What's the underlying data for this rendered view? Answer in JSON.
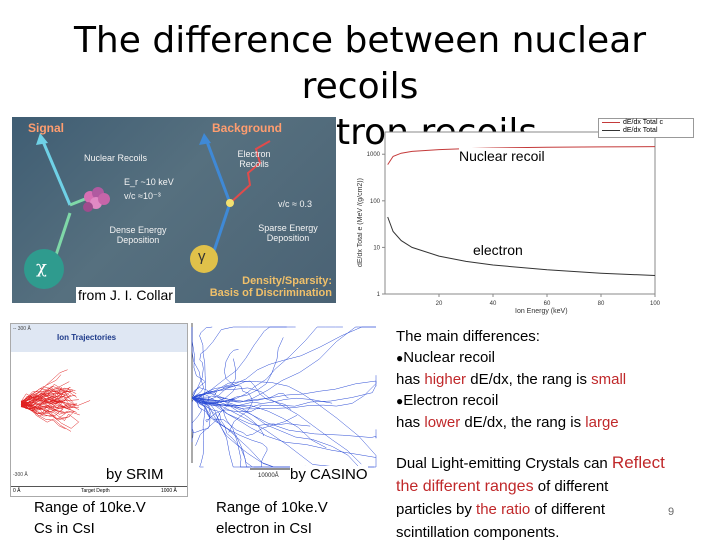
{
  "slide": {
    "title_line1": "The difference between nuclear recoils",
    "title_line2": "and electron recoils",
    "page_number": "9"
  },
  "signal_panel": {
    "signal": "Signal",
    "background": "Background",
    "nuclear_recoils": "Nuclear Recoils",
    "energy": "E_r ~10 keV",
    "velocity_nr": "v/c ≈10⁻³",
    "electron_recoils_line1": "Electron",
    "electron_recoils_line2": "Recoils",
    "velocity_er": "v/c ≈ 0.3",
    "dense_line1": "Dense Energy",
    "dense_line2": "Deposition",
    "sparse_line1": "Sparse Energy",
    "sparse_line2": "Deposition",
    "chi": "χ",
    "gamma": "γ",
    "basis_line1": "Density/Sparsity:",
    "basis_line2": "Basis of Discrimination",
    "credit": "from J. I. Collar"
  },
  "dedx_plot": {
    "legend": [
      "dE/dx Total c",
      "dE/dx Total"
    ],
    "ylabel": "dE/dx Total e (MeV /(g/cm2))",
    "xlabel": "Ion Energy (keV)",
    "nuclear_label": "Nuclear recoil",
    "electron_label": "electron"
  },
  "chart_data": {
    "type": "line",
    "xlabel": "Ion Energy (keV)",
    "ylabel": "dE/dx Total e (MeV /(g/cm2))",
    "xlim": [
      0,
      100
    ],
    "ylim": [
      1,
      3000
    ],
    "yscale": "log",
    "x_ticks": [
      "20",
      "40",
      "60",
      "80",
      "100"
    ],
    "y_ticks": [
      "1",
      "10",
      "100",
      "1000"
    ],
    "series": [
      {
        "name": "dE/dx Total c",
        "color": "#c43a3a",
        "x": [
          1,
          3,
          6,
          10,
          20,
          30,
          40,
          60,
          80,
          100
        ],
        "y": [
          600,
          900,
          1050,
          1150,
          1260,
          1320,
          1360,
          1410,
          1440,
          1460
        ]
      },
      {
        "name": "dE/dx Total",
        "color": "#333333",
        "x": [
          1,
          3,
          6,
          10,
          20,
          30,
          40,
          60,
          80,
          100
        ],
        "y": [
          45,
          22,
          14,
          10,
          6.5,
          5,
          4.2,
          3.3,
          2.8,
          2.5
        ]
      }
    ],
    "annotations": [
      "Nuclear recoil",
      "electron"
    ]
  },
  "srim": {
    "header": "Ion Trajectories",
    "scale_top": "-- 300 Å",
    "scale_bottom": "-300 Å",
    "axis_left": "0 Å",
    "axis_mid": "Target Depth",
    "axis_right": "1000 Å",
    "by": "by SRIM",
    "range_line1": "Range of 10ke.V",
    "range_line2": "Cs  in CsI"
  },
  "casino": {
    "scale": "10000Å",
    "by": "by CASINO",
    "range_line1": "Range of 10ke.V",
    "range_line2": "electron in CsI"
  },
  "differences": {
    "intro": "The main differences:",
    "bullet1": "Nuclear recoil",
    "nr_has": "has ",
    "nr_higher": "higher",
    "nr_mid": " dE/dx, the rang is ",
    "nr_small": "small",
    "bullet2": "Electron recoil",
    "er_has": "has ",
    "er_lower": "lower",
    "er_mid": " dE/dx, the rang is ",
    "er_large": "large"
  },
  "conclusion": {
    "p1": "Dual Light-emitting Crystals can ",
    "reflect": "Reflect",
    "p2_red": "the different ranges",
    "p2": " of different",
    "p3": "particles by ",
    "p3_red": "the ratio",
    "p4": " of different",
    "p5": "scintillation components."
  }
}
